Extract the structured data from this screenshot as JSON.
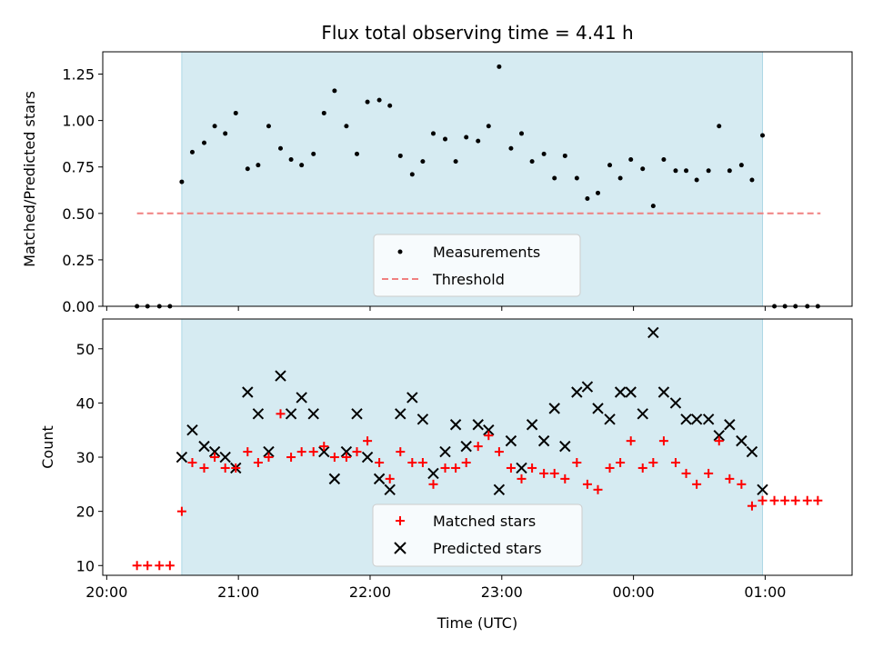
{
  "chart_data": [
    {
      "type": "scatter",
      "title": "Flux total observing time = 4.41 h",
      "ylabel": "Matched/Predicted stars",
      "xlabel": "",
      "x_tick_labels": [
        "20:00",
        "21:00",
        "22:00",
        "23:00",
        "00:00",
        "01:00"
      ],
      "y_tick_labels": [
        "0.00",
        "0.25",
        "0.50",
        "0.75",
        "1.00",
        "1.25"
      ],
      "xlim_hours": [
        19.97,
        25.66
      ],
      "ylim": [
        0.0,
        1.37
      ],
      "observing_window_hours": [
        20.57,
        24.98
      ],
      "observing_window_color": "#add8e6",
      "legend": {
        "position": "bottom-center",
        "entries": [
          "Measurements",
          "Threshold"
        ]
      },
      "threshold": {
        "name": "Threshold",
        "value": 0.5,
        "x_start_hours": 20.23,
        "x_end_hours": 25.42,
        "color": "#f08080",
        "style": "dashed"
      },
      "series": [
        {
          "name": "Measurements",
          "color": "#000000",
          "marker": "dot",
          "x_hours": [
            20.23,
            20.31,
            20.4,
            20.48,
            20.57,
            20.65,
            20.74,
            20.82,
            20.9,
            20.98,
            21.07,
            21.15,
            21.23,
            21.32,
            21.4,
            21.48,
            21.57,
            21.65,
            21.73,
            21.82,
            21.9,
            21.98,
            22.07,
            22.15,
            22.23,
            22.32,
            22.4,
            22.48,
            22.57,
            22.65,
            22.73,
            22.82,
            22.9,
            22.98,
            23.07,
            23.15,
            23.23,
            23.32,
            23.4,
            23.48,
            23.57,
            23.65,
            23.73,
            23.82,
            23.9,
            23.98,
            24.07,
            24.15,
            24.23,
            24.32,
            24.4,
            24.48,
            24.57,
            24.65,
            24.73,
            24.82,
            24.9,
            24.98,
            25.07,
            25.15,
            25.23,
            25.32,
            25.4
          ],
          "y": [
            0,
            0,
            0,
            0,
            0.67,
            0.83,
            0.88,
            0.97,
            0.93,
            1.04,
            0.74,
            0.76,
            0.97,
            0.85,
            0.79,
            0.76,
            0.82,
            1.04,
            1.16,
            0.97,
            0.82,
            1.1,
            1.11,
            1.08,
            0.81,
            0.71,
            0.78,
            0.93,
            0.9,
            0.78,
            0.91,
            0.89,
            0.97,
            1.29,
            0.85,
            0.93,
            0.78,
            0.82,
            0.69,
            0.81,
            0.69,
            0.58,
            0.61,
            0.76,
            0.69,
            0.79,
            0.74,
            0.54,
            0.79,
            0.73,
            0.73,
            0.68,
            0.73,
            0.97,
            0.73,
            0.76,
            0.68,
            0.92,
            0,
            0,
            0,
            0,
            0
          ]
        }
      ]
    },
    {
      "type": "scatter",
      "title": "",
      "ylabel": "Count",
      "xlabel": "Time (UTC)",
      "x_tick_labels": [
        "20:00",
        "21:00",
        "22:00",
        "23:00",
        "00:00",
        "01:00"
      ],
      "y_tick_labels": [
        "10",
        "20",
        "30",
        "40",
        "50"
      ],
      "xlim_hours": [
        19.97,
        25.66
      ],
      "ylim": [
        8.2,
        55.5
      ],
      "observing_window_hours": [
        20.57,
        24.98
      ],
      "observing_window_color": "#add8e6",
      "legend": {
        "position": "bottom-center",
        "entries": [
          "Matched stars",
          "Predicted stars"
        ]
      },
      "series": [
        {
          "name": "Matched stars",
          "color": "#ff0000",
          "marker": "plus",
          "x_hours": [
            20.23,
            20.31,
            20.4,
            20.48,
            20.57,
            20.65,
            20.74,
            20.82,
            20.9,
            20.98,
            21.07,
            21.15,
            21.23,
            21.32,
            21.4,
            21.48,
            21.57,
            21.65,
            21.73,
            21.82,
            21.9,
            21.98,
            22.07,
            22.15,
            22.23,
            22.32,
            22.4,
            22.48,
            22.57,
            22.65,
            22.73,
            22.82,
            22.9,
            22.98,
            23.07,
            23.15,
            23.23,
            23.32,
            23.4,
            23.48,
            23.57,
            23.65,
            23.73,
            23.82,
            23.9,
            23.98,
            24.07,
            24.15,
            24.23,
            24.32,
            24.4,
            24.48,
            24.57,
            24.65,
            24.73,
            24.82,
            24.9,
            24.98,
            25.07,
            25.15,
            25.23,
            25.32,
            25.4
          ],
          "y": [
            10,
            10,
            10,
            10,
            20,
            29,
            28,
            30,
            28,
            28,
            31,
            29,
            30,
            38,
            30,
            31,
            31,
            32,
            30,
            30,
            31,
            33,
            29,
            26,
            31,
            29,
            29,
            25,
            28,
            28,
            29,
            32,
            34,
            31,
            28,
            26,
            28,
            27,
            27,
            26,
            29,
            25,
            24,
            28,
            29,
            33,
            28,
            29,
            33,
            29,
            27,
            25,
            27,
            33,
            26,
            25,
            21,
            22,
            22,
            22,
            22,
            22,
            22
          ]
        },
        {
          "name": "Predicted stars",
          "color": "#000000",
          "marker": "x",
          "x_hours": [
            20.57,
            20.65,
            20.74,
            20.82,
            20.9,
            20.98,
            21.07,
            21.15,
            21.23,
            21.32,
            21.4,
            21.48,
            21.57,
            21.65,
            21.73,
            21.82,
            21.9,
            21.98,
            22.07,
            22.15,
            22.23,
            22.32,
            22.4,
            22.48,
            22.57,
            22.65,
            22.73,
            22.82,
            22.9,
            22.98,
            23.07,
            23.15,
            23.23,
            23.32,
            23.4,
            23.48,
            23.57,
            23.65,
            23.73,
            23.82,
            23.9,
            23.98,
            24.07,
            24.15,
            24.23,
            24.32,
            24.4,
            24.48,
            24.57,
            24.65,
            24.73,
            24.82,
            24.9,
            24.98
          ],
          "y": [
            30,
            35,
            32,
            31,
            30,
            28,
            42,
            38,
            31,
            45,
            38,
            41,
            38,
            31,
            26,
            31,
            38,
            30,
            26,
            24,
            38,
            41,
            37,
            27,
            31,
            36,
            32,
            36,
            35,
            24,
            33,
            28,
            36,
            33,
            39,
            32,
            42,
            43,
            39,
            37,
            42,
            42,
            38,
            53,
            42,
            40,
            37,
            37,
            37,
            34,
            36,
            33,
            31,
            24
          ]
        }
      ]
    }
  ]
}
